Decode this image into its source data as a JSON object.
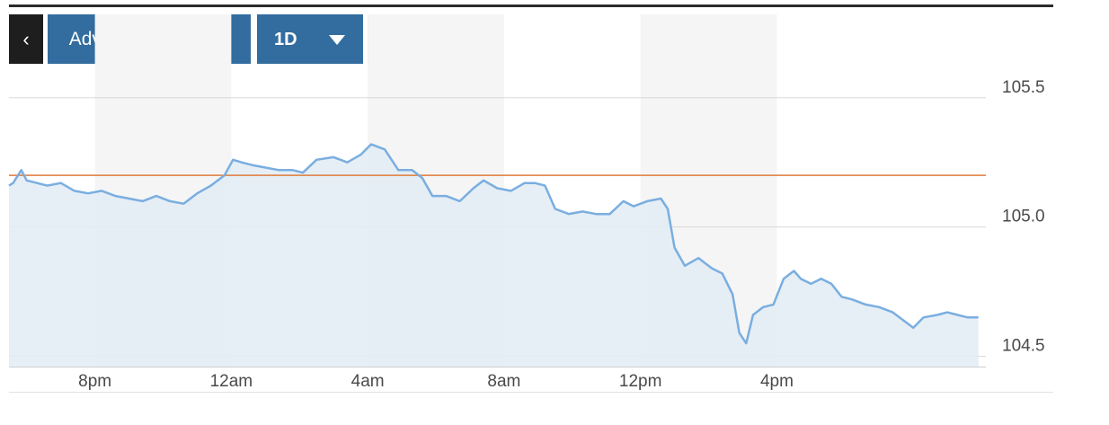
{
  "toolbar": {
    "back_label": "‹",
    "advanced_label": "Advanced Charting",
    "range_label": "1D",
    "unit_dollar": "$",
    "unit_percent": "%"
  },
  "colors": {
    "line": "#7aaee0",
    "area": "#e2ecf4",
    "reference": "#e07b39",
    "button": "#336d9f"
  },
  "chart_data": {
    "type": "area",
    "x_ticks": [
      {
        "label": "8pm",
        "h": 20
      },
      {
        "label": "12am",
        "h": 24
      },
      {
        "label": "4am",
        "h": 28
      },
      {
        "label": "8am",
        "h": 32
      },
      {
        "label": "12pm",
        "h": 36
      },
      {
        "label": "4pm",
        "h": 40
      }
    ],
    "y_ticks": [
      105.5,
      105.0,
      104.5
    ],
    "ylim": [
      104.46,
      105.6
    ],
    "xlim": [
      17.48,
      46.13
    ],
    "reference_line": 105.2,
    "series": [
      {
        "values": [
          [
            17.48,
            105.16
          ],
          [
            17.6,
            105.17
          ],
          [
            17.84,
            105.22
          ],
          [
            18.0,
            105.18
          ],
          [
            18.3,
            105.17
          ],
          [
            18.6,
            105.16
          ],
          [
            19.0,
            105.17
          ],
          [
            19.4,
            105.14
          ],
          [
            19.8,
            105.13
          ],
          [
            20.2,
            105.14
          ],
          [
            20.6,
            105.12
          ],
          [
            21.0,
            105.11
          ],
          [
            21.4,
            105.1
          ],
          [
            21.8,
            105.12
          ],
          [
            22.2,
            105.1
          ],
          [
            22.6,
            105.09
          ],
          [
            23.0,
            105.13
          ],
          [
            23.4,
            105.16
          ],
          [
            23.8,
            105.2
          ],
          [
            24.05,
            105.26
          ],
          [
            24.3,
            105.25
          ],
          [
            24.6,
            105.24
          ],
          [
            25.0,
            105.23
          ],
          [
            25.4,
            105.22
          ],
          [
            25.8,
            105.22
          ],
          [
            26.1,
            105.21
          ],
          [
            26.5,
            105.26
          ],
          [
            27.0,
            105.27
          ],
          [
            27.4,
            105.25
          ],
          [
            27.8,
            105.28
          ],
          [
            28.1,
            105.32
          ],
          [
            28.5,
            105.3
          ],
          [
            28.9,
            105.22
          ],
          [
            29.3,
            105.22
          ],
          [
            29.6,
            105.19
          ],
          [
            29.9,
            105.12
          ],
          [
            30.3,
            105.12
          ],
          [
            30.7,
            105.1
          ],
          [
            31.1,
            105.15
          ],
          [
            31.4,
            105.18
          ],
          [
            31.8,
            105.15
          ],
          [
            32.2,
            105.14
          ],
          [
            32.6,
            105.17
          ],
          [
            32.9,
            105.17
          ],
          [
            33.2,
            105.16
          ],
          [
            33.5,
            105.07
          ],
          [
            33.9,
            105.05
          ],
          [
            34.3,
            105.06
          ],
          [
            34.7,
            105.05
          ],
          [
            35.1,
            105.05
          ],
          [
            35.5,
            105.1
          ],
          [
            35.8,
            105.08
          ],
          [
            36.2,
            105.1
          ],
          [
            36.6,
            105.11
          ],
          [
            36.8,
            105.07
          ],
          [
            37.0,
            104.92
          ],
          [
            37.3,
            104.85
          ],
          [
            37.7,
            104.88
          ],
          [
            38.1,
            104.84
          ],
          [
            38.4,
            104.82
          ],
          [
            38.7,
            104.74
          ],
          [
            38.9,
            104.59
          ],
          [
            39.1,
            104.55
          ],
          [
            39.3,
            104.66
          ],
          [
            39.6,
            104.69
          ],
          [
            39.9,
            104.7
          ],
          [
            40.2,
            104.8
          ],
          [
            40.5,
            104.83
          ],
          [
            40.7,
            104.8
          ],
          [
            41.0,
            104.78
          ],
          [
            41.3,
            104.8
          ],
          [
            41.6,
            104.78
          ],
          [
            41.9,
            104.73
          ],
          [
            42.2,
            104.72
          ],
          [
            42.6,
            104.7
          ],
          [
            43.0,
            104.69
          ],
          [
            43.4,
            104.67
          ],
          [
            43.7,
            104.64
          ],
          [
            44.0,
            104.61
          ],
          [
            44.3,
            104.65
          ],
          [
            44.7,
            104.66
          ],
          [
            45.0,
            104.67
          ],
          [
            45.3,
            104.66
          ],
          [
            45.6,
            104.65
          ],
          [
            45.91,
            104.65
          ]
        ]
      }
    ]
  }
}
